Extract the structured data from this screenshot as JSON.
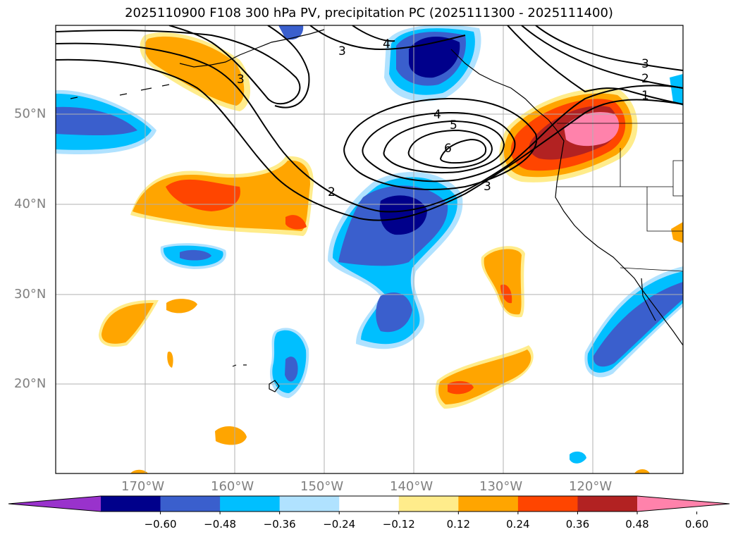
{
  "title": "2025110900 F108 300 hPa PV, precipitation PC (2025111300 - 2025111400)",
  "lat_labels": [
    "50°N",
    "40°N",
    "30°N",
    "20°N"
  ],
  "lon_labels": [
    "170°W",
    "160°W",
    "150°W",
    "140°W",
    "130°W",
    "120°W"
  ],
  "pv_contour_labels": [
    "3",
    "4",
    "4",
    "5",
    "6",
    "3",
    "2",
    "3",
    "2",
    "1",
    "3"
  ],
  "colorbar": {
    "ticks": [
      "−0.60",
      "−0.48",
      "−0.36",
      "−0.24",
      "−0.12",
      "0.12",
      "0.24",
      "0.36",
      "0.48",
      "0.60"
    ],
    "colors": [
      "#9932cc",
      "#00008b",
      "#3a5fcd",
      "#00bfff",
      "#b0e2ff",
      "#ffffff",
      "#ffec8b",
      "#ffa500",
      "#ff4500",
      "#b22222",
      "#ff82ab"
    ]
  }
}
